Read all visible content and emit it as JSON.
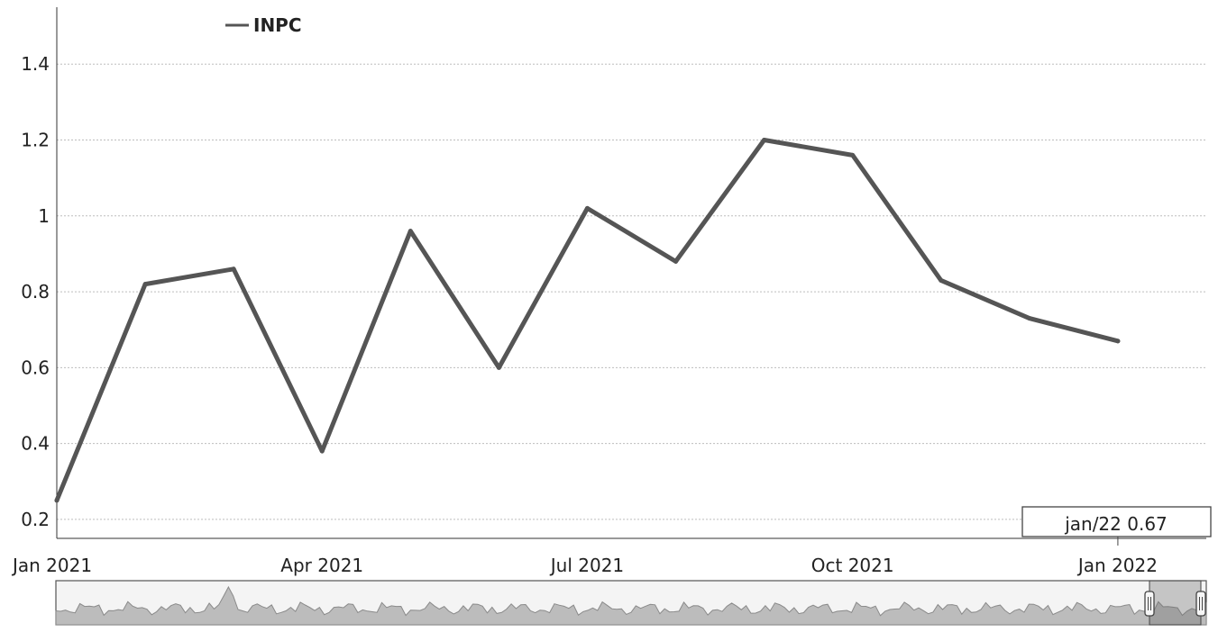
{
  "chart_data": {
    "type": "line",
    "series": [
      {
        "name": "INPC",
        "x": [
          "2021-01",
          "2021-02",
          "2021-03",
          "2021-04",
          "2021-05",
          "2021-06",
          "2021-07",
          "2021-08",
          "2021-09",
          "2021-10",
          "2021-11",
          "2021-12",
          "2022-01"
        ],
        "values": [
          0.25,
          0.82,
          0.86,
          0.38,
          0.96,
          0.6,
          1.02,
          0.88,
          1.2,
          1.16,
          0.83,
          0.73,
          0.67
        ]
      }
    ],
    "y_ticks": [
      "0.2",
      "0.4",
      "0.6",
      "0.8",
      "1",
      "1.2",
      "1.4"
    ],
    "x_ticks": [
      {
        "label": "Jan 2021",
        "x": "2021-01"
      },
      {
        "label": "Apr 2021",
        "x": "2021-04"
      },
      {
        "label": "Jul 2021",
        "x": "2021-07"
      },
      {
        "label": "Oct 2021",
        "x": "2021-10"
      },
      {
        "label": "Jan 2022",
        "x": "2022-01"
      }
    ],
    "ylim": [
      0.15,
      1.55
    ],
    "xlim": [
      "2021-01",
      "2022-02"
    ],
    "grid": true,
    "legend_position": "top-left",
    "line_color": "#555555",
    "grid_color": "#bdbdbd",
    "tooltip": {
      "label": "jan/22",
      "value": "0.67"
    }
  },
  "navigator": {
    "fill_color": "#bcbcbc"
  }
}
